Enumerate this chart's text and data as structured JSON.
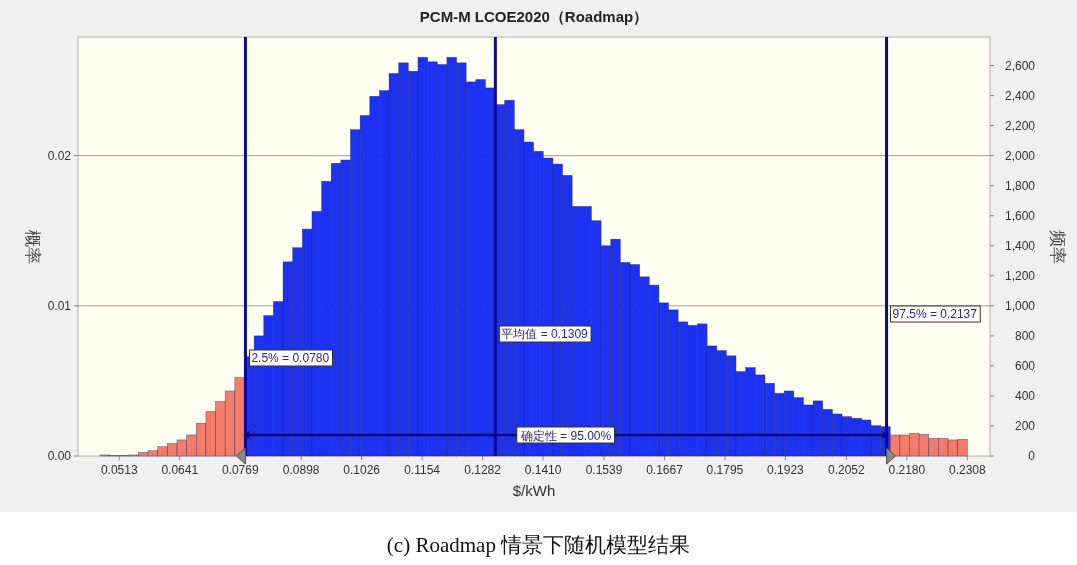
{
  "chart_data": {
    "type": "histogram",
    "title": "PCM-M LCOE2020（Roadmap）",
    "xlabel": "$/kWh",
    "ylabel": "概率",
    "y2label": "频率",
    "bins": [
      0.0472,
      0.04924,
      0.05128,
      0.05332,
      0.05536,
      0.0574,
      0.05944,
      0.06148,
      0.06352,
      0.06556,
      0.0676,
      0.06964,
      0.07168,
      0.07372,
      0.07576,
      0.0778,
      0.07984,
      0.08188,
      0.08392,
      0.08596,
      0.088,
      0.09004,
      0.09208,
      0.09412,
      0.09616,
      0.0982,
      0.10024,
      0.10228,
      0.10432,
      0.10636,
      0.1084,
      0.11044,
      0.11248,
      0.11452,
      0.11656,
      0.1186,
      0.12064,
      0.12268,
      0.12472,
      0.12676,
      0.1288,
      0.13084,
      0.13288,
      0.13492,
      0.13696,
      0.139,
      0.14104,
      0.14308,
      0.14512,
      0.14716,
      0.1492,
      0.15124,
      0.15328,
      0.15532,
      0.15736,
      0.1594,
      0.16144,
      0.16348,
      0.16552,
      0.16756,
      0.1696,
      0.17164,
      0.17368,
      0.17572,
      0.17776,
      0.1798,
      0.18184,
      0.18388,
      0.18592,
      0.18796,
      0.19,
      0.19204,
      0.19408,
      0.19612,
      0.19816,
      0.2002,
      0.20224,
      0.20428,
      0.20632,
      0.20836,
      0.2104,
      0.21244,
      0.21448,
      0.21652,
      0.21856,
      0.2206,
      0.22264,
      0.22468,
      0.22672,
      0.22876,
      0.2308
    ],
    "series": [
      {
        "axis": "y2",
        "values": [
          7,
          2,
          4,
          7,
          24,
          35,
          62,
          84,
          107,
          140,
          218,
          296,
          362,
          433,
          522,
          662,
          800,
          935,
          1029,
          1293,
          1387,
          1511,
          1629,
          1829,
          1949,
          1971,
          2173,
          2267,
          2395,
          2433,
          2547,
          2618,
          2562,
          2655,
          2625,
          2607,
          2655,
          2618,
          2491,
          2507,
          2451,
          2340,
          2369,
          2173,
          2091,
          2029,
          1984,
          1944,
          1869,
          1662,
          1662,
          1567,
          1400,
          1444,
          1289,
          1275,
          1193,
          1138,
          1020,
          973,
          893,
          870,
          880,
          733,
          702,
          667,
          562,
          589,
          540,
          484,
          418,
          433,
          389,
          340,
          367,
          311,
          280,
          262,
          251,
          240,
          202,
          196,
          140,
          140,
          151,
          144,
          118,
          118,
          107,
          111
        ],
        "colors": [
          "#f47c6a",
          "#f47c6a",
          "#f47c6a",
          "#f47c6a",
          "#f47c6a",
          "#f47c6a",
          "#f47c6a",
          "#f47c6a",
          "#f47c6a",
          "#f47c6a",
          "#f47c6a",
          "#f47c6a",
          "#f47c6a",
          "#f47c6a",
          "#f47c6a",
          "#1c32f0",
          "#1c32f0",
          "#1c32f0",
          "#1c32f0",
          "#1c32f0",
          "#1c32f0",
          "#1c32f0",
          "#1c32f0",
          "#1c32f0",
          "#1c32f0",
          "#1c32f0",
          "#1c32f0",
          "#1c32f0",
          "#1c32f0",
          "#1c32f0",
          "#1c32f0",
          "#1c32f0",
          "#1c32f0",
          "#1c32f0",
          "#1c32f0",
          "#1c32f0",
          "#1c32f0",
          "#1c32f0",
          "#1c32f0",
          "#1c32f0",
          "#1c32f0",
          "#1c32f0",
          "#1c32f0",
          "#1c32f0",
          "#1c32f0",
          "#1c32f0",
          "#1c32f0",
          "#1c32f0",
          "#1c32f0",
          "#1c32f0",
          "#1c32f0",
          "#1c32f0",
          "#1c32f0",
          "#1c32f0",
          "#1c32f0",
          "#1c32f0",
          "#1c32f0",
          "#1c32f0",
          "#1c32f0",
          "#1c32f0",
          "#1c32f0",
          "#1c32f0",
          "#1c32f0",
          "#1c32f0",
          "#1c32f0",
          "#1c32f0",
          "#1c32f0",
          "#1c32f0",
          "#1c32f0",
          "#1c32f0",
          "#1c32f0",
          "#1c32f0",
          "#1c32f0",
          "#1c32f0",
          "#1c32f0",
          "#1c32f0",
          "#1c32f0",
          "#1c32f0",
          "#1c32f0",
          "#1c32f0",
          "#1c32f0",
          "#1c32f0",
          "#f47c6a",
          "#f47c6a",
          "#f47c6a",
          "#f47c6a",
          "#f47c6a",
          "#f47c6a",
          "#f47c6a",
          "#f47c6a"
        ]
      }
    ],
    "xlim": [
      0.04256,
      0.2356
    ],
    "xticks": [
      0.0513,
      0.0641,
      0.0769,
      0.0898,
      0.1026,
      0.1154,
      0.1282,
      {
        "value": 0.141,
        "label": "0.1410"
      },
      0.1539,
      0.1667,
      0.1795,
      0.1923,
      0.2052,
      {
        "value": 0.218,
        "label": "0.2180"
      },
      0.2308
    ],
    "ylim": [
      0,
      0.0279
    ],
    "yticks": [
      {
        "value": 0,
        "label": "0.00"
      },
      0.01,
      0.02
    ],
    "y2lim": [
      0,
      2790
    ],
    "y2ticks": [
      0,
      200,
      400,
      600,
      800,
      {
        "value": 1000,
        "label": "1,000"
      },
      {
        "value": 1200,
        "label": "1,200"
      },
      {
        "value": 1400,
        "label": "1,400"
      },
      {
        "value": 1600,
        "label": "1,600"
      },
      {
        "value": 1800,
        "label": "1,800"
      },
      {
        "value": 2000,
        "label": "2,000"
      },
      {
        "value": 2200,
        "label": "2,200"
      },
      {
        "value": 2400,
        "label": "2,400"
      },
      {
        "value": 2600,
        "label": "2,600"
      }
    ],
    "grid": "y",
    "ref_lines": [
      {
        "axis": "x",
        "value": 0.078,
        "label": "2.5% = 0.0780",
        "color": "#0a0a96"
      },
      {
        "axis": "x",
        "value": 0.1309,
        "label": "平均值 = 0.1309",
        "color": "#0a0a96"
      },
      {
        "axis": "x",
        "value": 0.2137,
        "label": "97.5% = 0.2137",
        "color": "#0a0a96"
      }
    ],
    "annotations": [
      "确定性 = 95.00%",
      "(c) Roadmap 情景下随机模型结果"
    ]
  }
}
